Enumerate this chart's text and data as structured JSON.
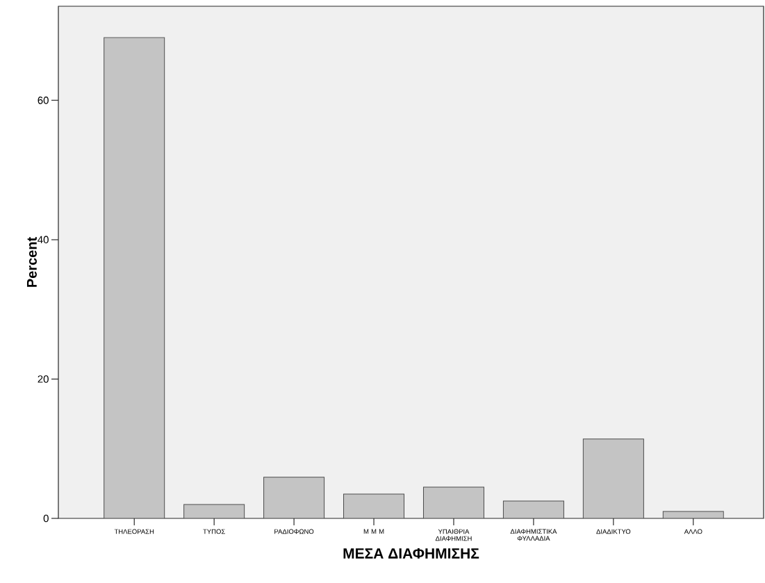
{
  "chart_data": {
    "type": "bar",
    "xlabel": "ΜΕΣΑ ΔΙΑΦΗΜΙΣΗΣ",
    "ylabel": "Percent",
    "categories": [
      "ΤΗΛΕΟΡΑΣΗ",
      "ΤΥΠΟΣ",
      "ΡΑΔΙΟΦΩΝΟ",
      "Μ Μ Μ",
      "ΥΠΑΙΘΡΙΑ ΔΙΑΦΗΜΙΣΗ",
      "ΔΙΑΦΗΜΙΣΤΙΚΑ ΦΥΛΛΑΔΙΑ",
      "ΔΙΑΔΙΚΤΥΟ",
      "ΑΛΛΟ"
    ],
    "values": [
      69.0,
      2.0,
      5.9,
      3.5,
      4.5,
      2.5,
      11.4,
      1.0
    ],
    "color": "#c4c4c4",
    "ylim": [
      0,
      73.5
    ],
    "yticks": [
      0,
      20,
      40,
      60
    ],
    "grid": false
  }
}
